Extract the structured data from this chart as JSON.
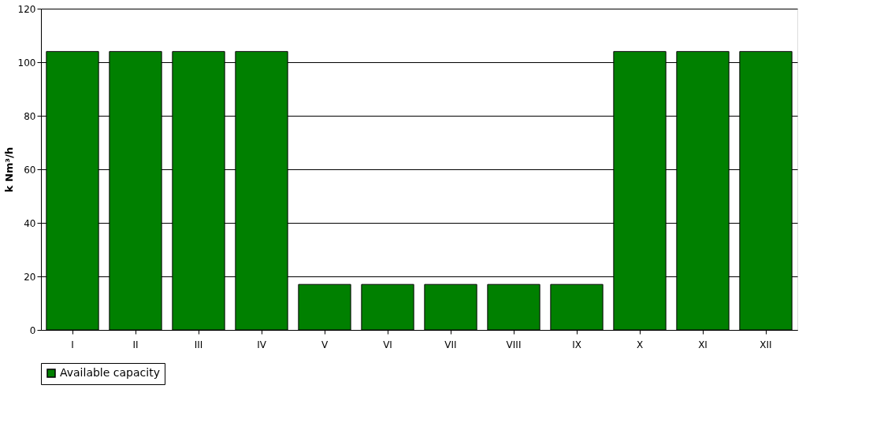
{
  "chart_data": {
    "type": "bar",
    "ylabel": "k Nm³/h",
    "categories": [
      "I",
      "II",
      "III",
      "IV",
      "V",
      "VI",
      "VII",
      "VIII",
      "IX",
      "X",
      "XI",
      "XII"
    ],
    "series": [
      {
        "name": "Available capacity",
        "color": "#008000",
        "values": [
          104,
          104,
          104,
          104,
          17,
          17,
          17,
          17,
          17,
          104,
          104,
          104
        ]
      }
    ],
    "ylim": [
      0,
      120
    ],
    "yticks": [
      0,
      20,
      40,
      60,
      80,
      100,
      120
    ],
    "grid": "y",
    "legend": "bottom"
  }
}
